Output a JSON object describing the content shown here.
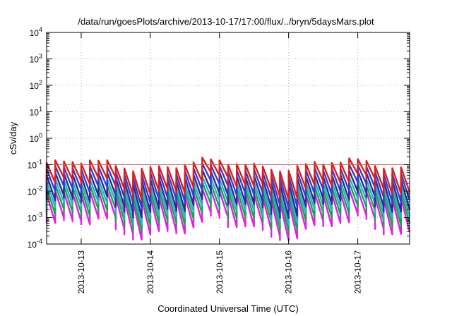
{
  "chart_data": {
    "type": "line",
    "title": "/data/run/goesPlots/archive/2013-10-17/17:00/flux/../bryn/5daysMars.plot",
    "xlabel": "Coordinated Universal Time (UTC)",
    "ylabel": "cSv/day",
    "x_axis": {
      "range": [
        "2013-10-12T12:00",
        "2013-10-17T18:00"
      ],
      "ticks": [
        "2013-10-13",
        "2013-10-14",
        "2013-10-15",
        "2013-10-16",
        "2013-10-17"
      ],
      "grid": true
    },
    "y_axis": {
      "scale": "log",
      "range": [
        0.0001,
        10000
      ],
      "ticks": [
        {
          "base": "10",
          "exp": "-4"
        },
        {
          "base": "10",
          "exp": "-3"
        },
        {
          "base": "10",
          "exp": "-2"
        },
        {
          "base": "10",
          "exp": "-1"
        },
        {
          "base": "10",
          "exp": "0"
        },
        {
          "base": "10",
          "exp": "1"
        },
        {
          "base": "10",
          "exp": "2"
        },
        {
          "base": "10",
          "exp": "3"
        },
        {
          "base": "10",
          "exp": "4"
        }
      ],
      "grid": true
    },
    "pattern": {
      "cycle_hours": 3,
      "cycles": 42,
      "peak_values": [
        0.1,
        0.06,
        0.035,
        0.02,
        0.012,
        0.007
      ],
      "trough_values": [
        0.015,
        0.008,
        0.004,
        0.0025,
        0.0015,
        0.0008
      ],
      "series_colors": [
        "#d62020",
        "#2e3fd6",
        "#2a2a9a",
        "#20b8b8",
        "#22a050",
        "#e020e0"
      ]
    },
    "reference_line": {
      "value": 0.1,
      "color": "#e05050"
    }
  }
}
